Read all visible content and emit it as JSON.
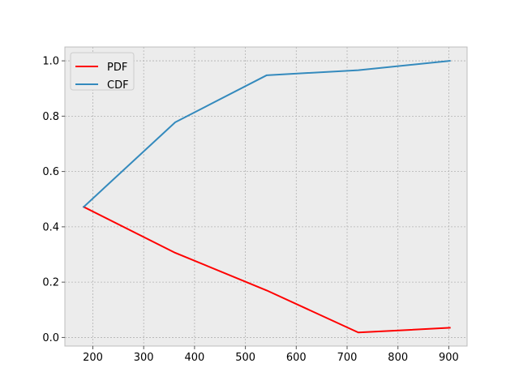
{
  "chart_data": {
    "type": "line",
    "title": "",
    "xlabel": "",
    "ylabel": "",
    "xlim": [
      145,
      936
    ],
    "ylim": [
      -0.031,
      1.05
    ],
    "x_ticks": [
      200,
      300,
      400,
      500,
      600,
      700,
      800,
      900
    ],
    "y_ticks": [
      0.0,
      0.2,
      0.4,
      0.6,
      0.8,
      1.0
    ],
    "x_tick_labels": [
      "200",
      "300",
      "400",
      "500",
      "600",
      "700",
      "800",
      "900"
    ],
    "y_tick_labels": [
      "0.0",
      "0.2",
      "0.4",
      "0.6",
      "0.8",
      "1.0"
    ],
    "grid": true,
    "legend": {
      "position": "top-left"
    },
    "background": "#ececec",
    "series": [
      {
        "name": "PDF",
        "color": "#ff0000",
        "x": [
          182,
          362,
          542,
          722,
          902
        ],
        "y": [
          0.472,
          0.306,
          0.17,
          0.018,
          0.035
        ]
      },
      {
        "name": "CDF",
        "color": "#348abd",
        "x": [
          182,
          362,
          542,
          722,
          902
        ],
        "y": [
          0.472,
          0.778,
          0.948,
          0.966,
          1.0
        ]
      }
    ]
  }
}
